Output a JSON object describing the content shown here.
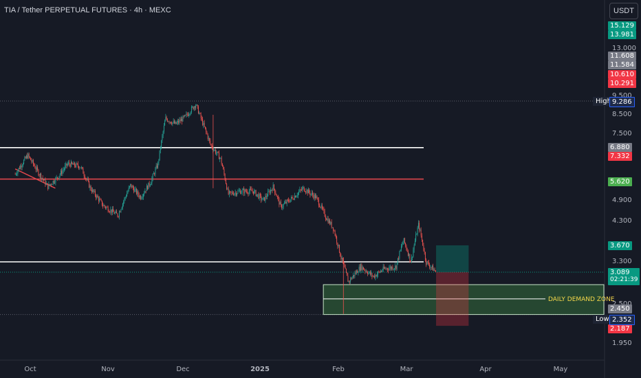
{
  "header": {
    "title": "TIA / Tether PERPETUAL FUTURES · 4h · MEXC",
    "currency": "USDT"
  },
  "colors": {
    "background": "#161a25",
    "candle_up": "#26a69a",
    "candle_down": "#ef5350",
    "resistance_line": "#ffffff",
    "pivot_line": "#e0474c",
    "demand_zone": "#4caf50",
    "zone_label": "#f5d84a"
  },
  "chart_data": {
    "type": "candlestick",
    "symbol": "TIA/USDT perpetual futures",
    "timeframe": "4h",
    "exchange": "MEXC",
    "y_axis_scale": "log",
    "y_tick_labels": [
      "13.000",
      "9.500",
      "8.500",
      "7.500",
      "6.500",
      "4.900",
      "4.300",
      "3.300",
      "2.500",
      "1.950"
    ],
    "x_tick_labels": [
      "Oct",
      "Nov",
      "Dec",
      "2025",
      "Feb",
      "Mar",
      "Apr",
      "May"
    ],
    "price_tags": [
      {
        "value": "15.129",
        "color": "#089981"
      },
      {
        "value": "13.981",
        "color": "#089981"
      },
      {
        "value": "11.608",
        "color": "#787b86"
      },
      {
        "value": "11.584",
        "color": "#787b86"
      },
      {
        "value": "10.610",
        "color": "#f23645"
      },
      {
        "value": "10.291",
        "color": "#f23645"
      },
      {
        "value": "7.332",
        "color": "#f23645"
      },
      {
        "value": "6.880",
        "color": "#787b86"
      },
      {
        "value": "5.620",
        "color": "#4caf50"
      },
      {
        "value": "3.670",
        "color": "#089981"
      },
      {
        "value": "2.450",
        "color": "#787b86"
      },
      {
        "value": "2.187",
        "color": "#f23645"
      }
    ],
    "current_price": {
      "value": "3.089",
      "countdown": "02:21:39"
    },
    "high": {
      "label": "High",
      "value": "9.286"
    },
    "low": {
      "label": "Low",
      "value": "2.352"
    },
    "horizontal_levels": [
      {
        "price": 6.88,
        "color": "#ffffff"
      },
      {
        "price": 5.62,
        "color": "#e0474c"
      },
      {
        "price": 3.3,
        "color": "#ffffff"
      }
    ],
    "demand_zone": {
      "label": "DAILY DEMAND ZONE",
      "top": 2.85,
      "bottom": 2.352,
      "mid": 2.6
    },
    "trend_line": {
      "from_date": "2024-09-25",
      "from_price": 6.0,
      "to_date": "2024-10-11",
      "to_price": 5.3
    },
    "position": {
      "entry": 3.089,
      "target": 3.67,
      "stop": 2.187,
      "start": "2025-03-12",
      "end": "2025-03-25"
    },
    "series_anchors": [
      [
        "2024-09-25",
        5.8
      ],
      [
        "2024-09-30",
        6.55
      ],
      [
        "2024-10-04",
        5.9
      ],
      [
        "2024-10-08",
        5.35
      ],
      [
        "2024-10-12",
        5.7
      ],
      [
        "2024-10-16",
        6.2
      ],
      [
        "2024-10-21",
        6.1
      ],
      [
        "2024-10-25",
        5.3
      ],
      [
        "2024-10-30",
        4.75
      ],
      [
        "2024-11-05",
        4.45
      ],
      [
        "2024-11-10",
        5.4
      ],
      [
        "2024-11-14",
        5.0
      ],
      [
        "2024-11-18",
        5.5
      ],
      [
        "2024-11-21",
        6.2
      ],
      [
        "2024-11-24",
        8.3
      ],
      [
        "2024-11-28",
        8.0
      ],
      [
        "2024-12-02",
        8.4
      ],
      [
        "2024-12-06",
        9.1
      ],
      [
        "2024-12-09",
        8.0
      ],
      [
        "2024-12-12",
        7.0
      ],
      [
        "2024-12-16",
        6.4
      ],
      [
        "2024-12-19",
        5.1
      ],
      [
        "2024-12-24",
        5.2
      ],
      [
        "2024-12-29",
        5.2
      ],
      [
        "2025-01-02",
        4.9
      ],
      [
        "2025-01-06",
        5.35
      ],
      [
        "2025-01-09",
        4.7
      ],
      [
        "2025-01-14",
        5.0
      ],
      [
        "2025-01-18",
        5.3
      ],
      [
        "2025-01-23",
        5.0
      ],
      [
        "2025-01-27",
        4.4
      ],
      [
        "2025-01-30",
        4.1
      ],
      [
        "2025-02-02",
        3.4
      ],
      [
        "2025-02-05",
        2.9
      ],
      [
        "2025-02-10",
        3.2
      ],
      [
        "2025-02-15",
        3.0
      ],
      [
        "2025-02-19",
        3.15
      ],
      [
        "2025-02-24",
        3.2
      ],
      [
        "2025-02-27",
        3.8
      ],
      [
        "2025-03-02",
        3.3
      ],
      [
        "2025-03-05",
        4.2
      ],
      [
        "2025-03-08",
        3.3
      ],
      [
        "2025-03-12",
        3.09
      ]
    ]
  }
}
